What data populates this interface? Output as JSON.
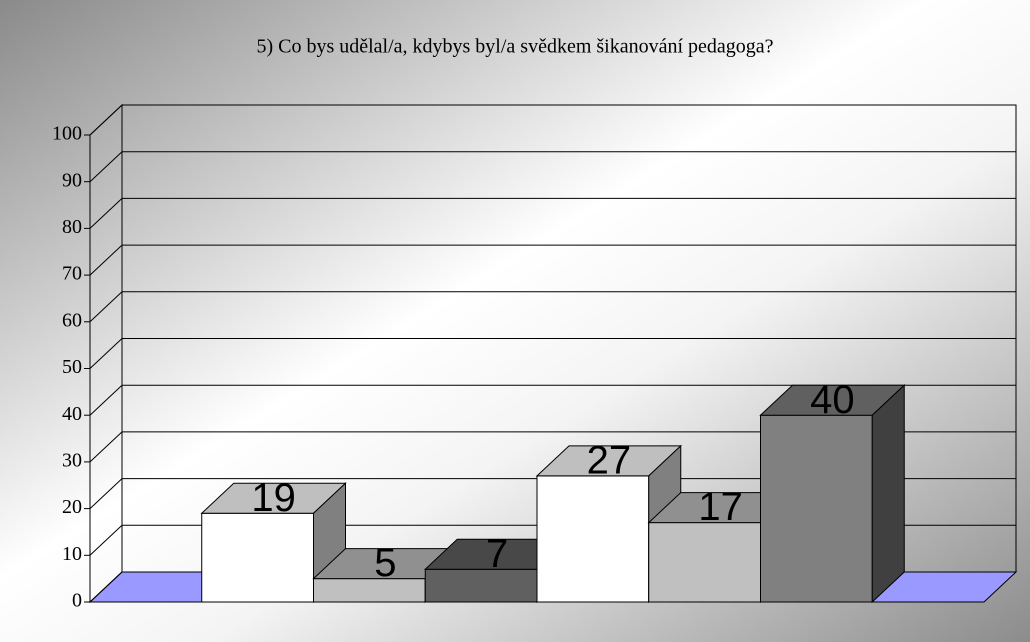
{
  "chart_data": {
    "type": "bar3d",
    "title": "5) Co bys udělal/a, kdybys byl/a svědkem šikanování pedagoga?",
    "categories": [
      null,
      null,
      null,
      null,
      null,
      null
    ],
    "values": [
      19,
      5,
      7,
      27,
      17,
      40
    ],
    "colors": [
      "#ffffff",
      "#c0c0c0",
      "#606060",
      "#ffffff",
      "#c0c0c0",
      "#808080"
    ],
    "floor_color": "#9999ff",
    "ylim": [
      0,
      100
    ],
    "yticks": [
      0,
      10,
      20,
      30,
      40,
      50,
      60,
      70,
      80,
      90,
      100
    ],
    "grid": true
  }
}
